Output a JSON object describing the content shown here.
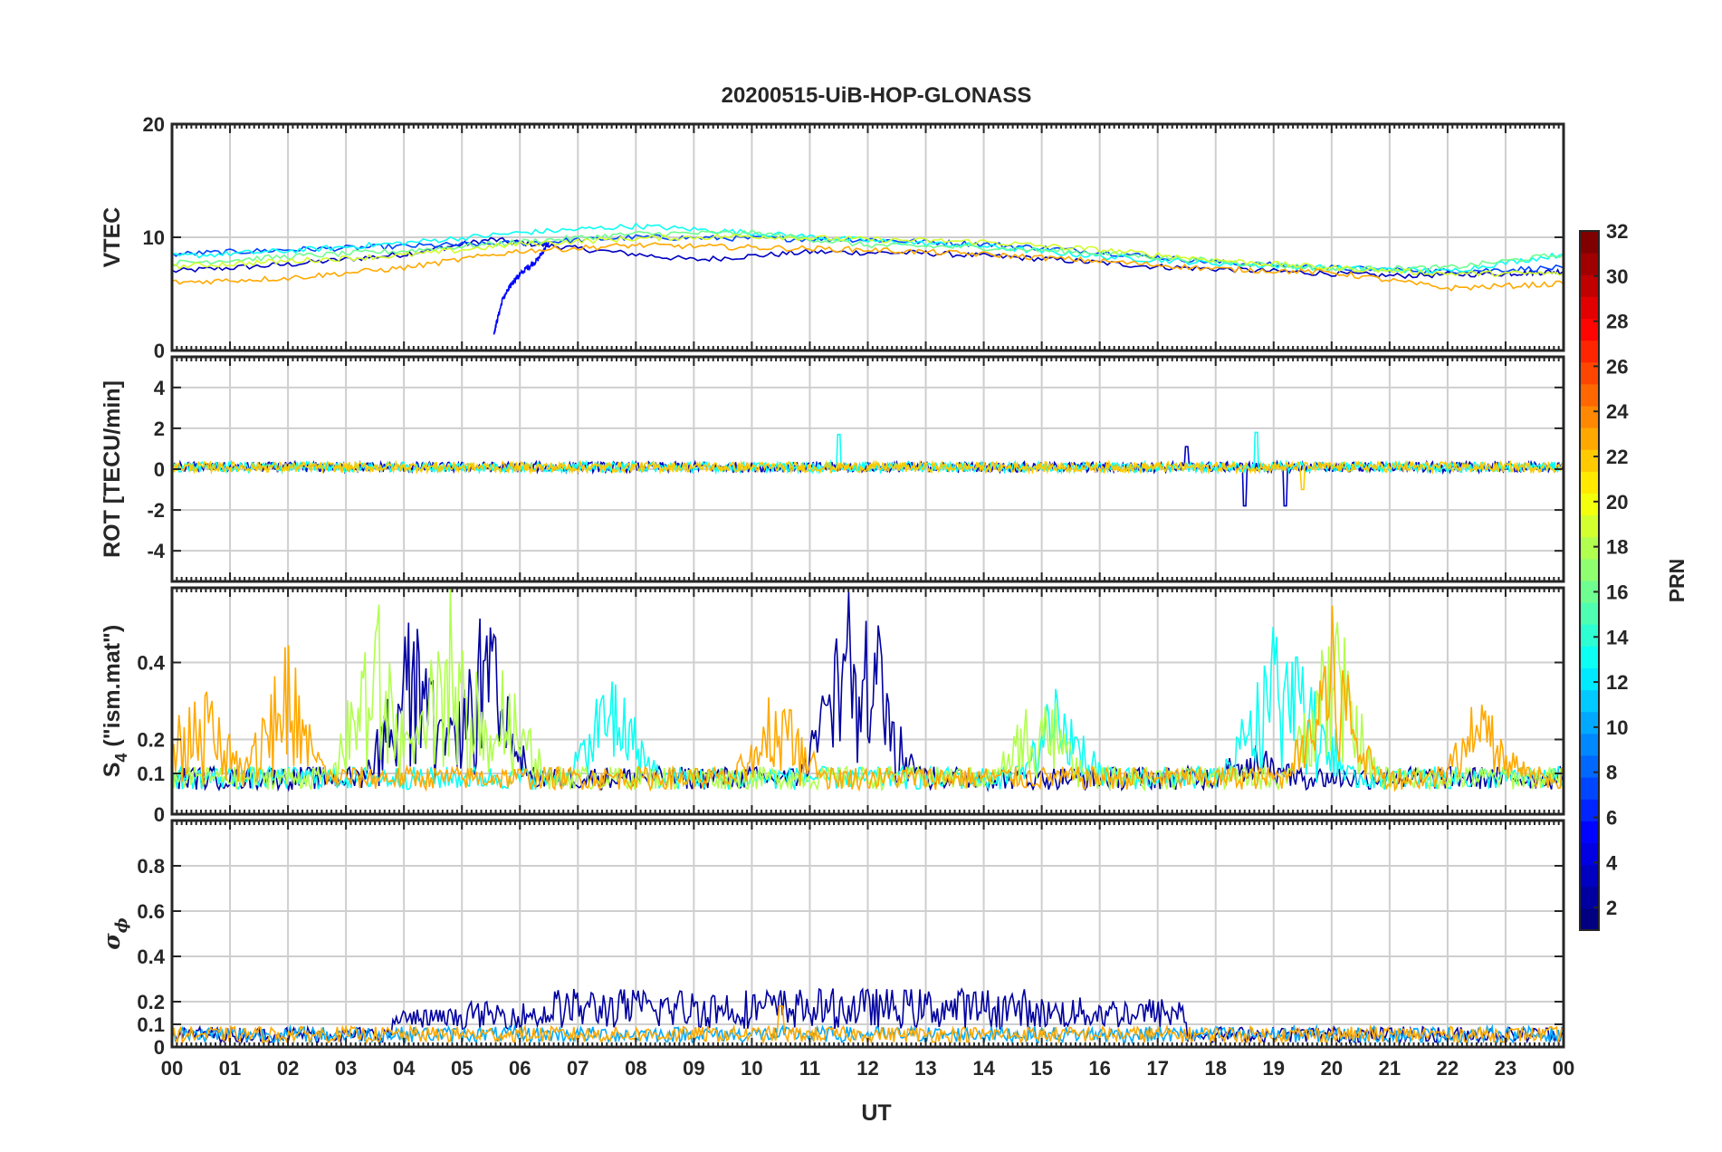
{
  "title": "20200515-UiB-HOP-GLONASS",
  "xlabel": "UT",
  "x_tick_labels": [
    "00",
    "01",
    "02",
    "03",
    "04",
    "05",
    "06",
    "07",
    "08",
    "09",
    "10",
    "11",
    "12",
    "13",
    "14",
    "15",
    "16",
    "17",
    "18",
    "19",
    "20",
    "21",
    "22",
    "23",
    "00"
  ],
  "colorbar": {
    "label": "PRN",
    "colormap": "jet",
    "range": [
      1,
      32
    ],
    "tick_labels": [
      "2",
      "4",
      "6",
      "8",
      "10",
      "12",
      "14",
      "16",
      "18",
      "20",
      "22",
      "24",
      "26",
      "28",
      "30",
      "32"
    ]
  },
  "panels": [
    {
      "id": "vtec",
      "ylabel": "VTEC",
      "ylim": [
        0,
        20
      ],
      "y_tick_labels": [
        "0",
        "10",
        "20"
      ],
      "grid": true
    },
    {
      "id": "rot",
      "ylabel": "ROT [TECU/min]",
      "ylim": [
        -5.5,
        5.5
      ],
      "y_tick_labels": [
        "-4",
        "-2",
        "0",
        "2",
        "4"
      ],
      "grid": true
    },
    {
      "id": "s4",
      "ylabel_main": "S",
      "ylabel_sub": "4",
      "ylabel_rest": " (\"ism.mat\")",
      "scale": "log",
      "ylim": [
        0.0,
        0.6
      ],
      "y_tick_labels": [
        "0",
        "0.1",
        "0.2",
        "0.4"
      ],
      "grid": true
    },
    {
      "id": "sigma_phi",
      "ylabel_main": "σ",
      "ylabel_sub": "ϕ",
      "ylim": [
        0,
        1
      ],
      "y_tick_labels": [
        "0",
        "0.1",
        "0.2",
        "0.4",
        "0.6",
        "0.8"
      ],
      "grid": true
    }
  ],
  "chart_data": [
    {
      "type": "line",
      "title": "20200515-UiB-HOP-GLONASS",
      "ylabel": "VTEC",
      "xlabel": "",
      "x_unit": "UT hours",
      "xlim": [
        0,
        24
      ],
      "ylim": [
        0,
        20
      ],
      "series": [
        {
          "prn": 3,
          "x": [
            0,
            2,
            4,
            5.5,
            7,
            9,
            11,
            13,
            15,
            17,
            19,
            21,
            23,
            24
          ],
          "values": [
            7.0,
            7.6,
            8.5,
            9.8,
            9.0,
            8.0,
            8.7,
            8.6,
            8.1,
            7.4,
            7.0,
            6.6,
            6.8,
            7.0
          ]
        },
        {
          "prn": 5,
          "x": [
            5.55,
            5.7,
            5.9,
            6.1,
            6.3,
            6.5
          ],
          "values": [
            1.5,
            4.5,
            6.2,
            7.2,
            8.0,
            9.5
          ]
        },
        {
          "prn": 7,
          "x": [
            0,
            2,
            4,
            6,
            8,
            10,
            12,
            14,
            16,
            18,
            20,
            22,
            24
          ],
          "values": [
            8.5,
            8.9,
            9.2,
            9.5,
            10.0,
            9.9,
            9.8,
            9.4,
            8.7,
            7.8,
            7.3,
            7.0,
            7.3
          ]
        },
        {
          "prn": 13,
          "x": [
            0,
            2,
            4,
            6,
            8,
            10,
            12,
            14,
            16,
            18,
            20,
            22,
            24
          ],
          "values": [
            8.3,
            8.8,
            9.5,
            10.4,
            11.0,
            10.4,
            9.7,
            9.2,
            8.3,
            7.7,
            7.3,
            7.0,
            8.5
          ]
        },
        {
          "prn": 16,
          "x": [
            0,
            2,
            4,
            6,
            8,
            10,
            12,
            14,
            16,
            18,
            20,
            22,
            24
          ],
          "values": [
            7.7,
            8.3,
            8.8,
            9.6,
            10.3,
            10.4,
            9.3,
            9.1,
            8.6,
            7.9,
            7.2,
            7.3,
            8.5
          ]
        },
        {
          "prn": 19,
          "x": [
            0,
            2,
            4,
            6,
            8,
            10,
            12,
            14,
            16,
            18,
            20,
            22,
            24
          ],
          "values": [
            7.4,
            7.9,
            8.4,
            9.4,
            9.9,
            10.1,
            9.8,
            9.6,
            8.9,
            8.0,
            7.3,
            6.8,
            6.8
          ]
        },
        {
          "prn": 23,
          "x": [
            0,
            2,
            4,
            6,
            8,
            10,
            12,
            14,
            16,
            18,
            20,
            22,
            24
          ],
          "values": [
            6.0,
            6.4,
            7.3,
            8.8,
            9.3,
            9.1,
            8.9,
            8.5,
            7.9,
            7.2,
            6.9,
            5.5,
            5.9
          ]
        }
      ]
    },
    {
      "type": "line",
      "ylabel": "ROT [TECU/min]",
      "xlim": [
        0,
        24
      ],
      "ylim": [
        -5.5,
        5.5
      ],
      "note_values": "values fluctuate around 0 with amplitude ~0.3; spikes near 11.5 UT (+1.6/-1.3) and 17-19.5 UT (up to +1.7 / -2.0)",
      "series": [
        {
          "prn": 3,
          "x": [
            0,
            4,
            8,
            12,
            16,
            17.5,
            18.5,
            19.2,
            20,
            24
          ],
          "values": [
            0.1,
            0.1,
            -0.1,
            0.1,
            0.0,
            1.0,
            -1.9,
            -1.9,
            0.1,
            0.1
          ]
        },
        {
          "prn": 13,
          "x": [
            0,
            4,
            8,
            11.5,
            12,
            16,
            18.7,
            20,
            24
          ],
          "values": [
            0.2,
            0.2,
            0.1,
            1.6,
            0.1,
            0.1,
            1.7,
            0.2,
            0.1
          ]
        },
        {
          "prn": 22,
          "x": [
            0,
            4,
            8,
            12,
            16,
            19.5,
            20,
            24
          ],
          "values": [
            0.1,
            0.1,
            0.0,
            0.1,
            0.0,
            -1.1,
            0.1,
            0.1
          ]
        }
      ]
    },
    {
      "type": "line",
      "ylabel": "S4 (\"ism.mat\")",
      "xlim": [
        0,
        24
      ],
      "ylim": [
        0.0,
        0.6
      ],
      "note_values": "noisy scintillation index; baseline 0.05-0.1, bursts up to 0.6",
      "series": [
        {
          "prn": 2,
          "peaks_x": [
            4.1,
            5.4,
            11.6,
            12.2,
            18.7
          ],
          "peak_values": [
            0.6,
            0.6,
            0.6,
            0.5,
            0.2
          ]
        },
        {
          "prn": 13,
          "peaks_x": [
            7.6,
            15.3,
            18.9,
            19.5
          ],
          "peak_values": [
            0.45,
            0.35,
            0.45,
            0.5
          ]
        },
        {
          "prn": 18,
          "peaks_x": [
            3.5,
            4.8,
            5.7,
            15.0,
            20.0
          ],
          "peak_values": [
            0.6,
            0.6,
            0.4,
            0.4,
            0.6
          ]
        },
        {
          "prn": 23,
          "peaks_x": [
            0.5,
            1.9,
            10.5,
            20.0,
            22.6
          ],
          "peak_values": [
            0.4,
            0.5,
            0.4,
            0.6,
            0.35
          ]
        }
      ]
    },
    {
      "type": "line",
      "ylabel": "σϕ",
      "xlim": [
        0,
        24
      ],
      "ylim": [
        0,
        1
      ],
      "note_values": "phase scintillation mostly 0.02-0.1; PRN 2 elevated 0.1-0.25 during 3.8-6.5 UT and 14.7-17.5 UT",
      "series": [
        {
          "prn": 2,
          "x": [
            3.8,
            5.0,
            6.5,
            14.7,
            16.0,
            17.5
          ],
          "values": [
            0.15,
            0.18,
            0.24,
            0.2,
            0.2,
            0.18
          ]
        },
        {
          "prn": 10,
          "x": [
            0,
            6,
            12,
            18,
            24
          ],
          "values": [
            0.05,
            0.06,
            0.05,
            0.05,
            0.06
          ]
        },
        {
          "prn": 23,
          "x": [
            0,
            6,
            10.5,
            12,
            18,
            24
          ],
          "values": [
            0.04,
            0.04,
            0.18,
            0.04,
            0.03,
            0.05
          ]
        }
      ]
    }
  ]
}
